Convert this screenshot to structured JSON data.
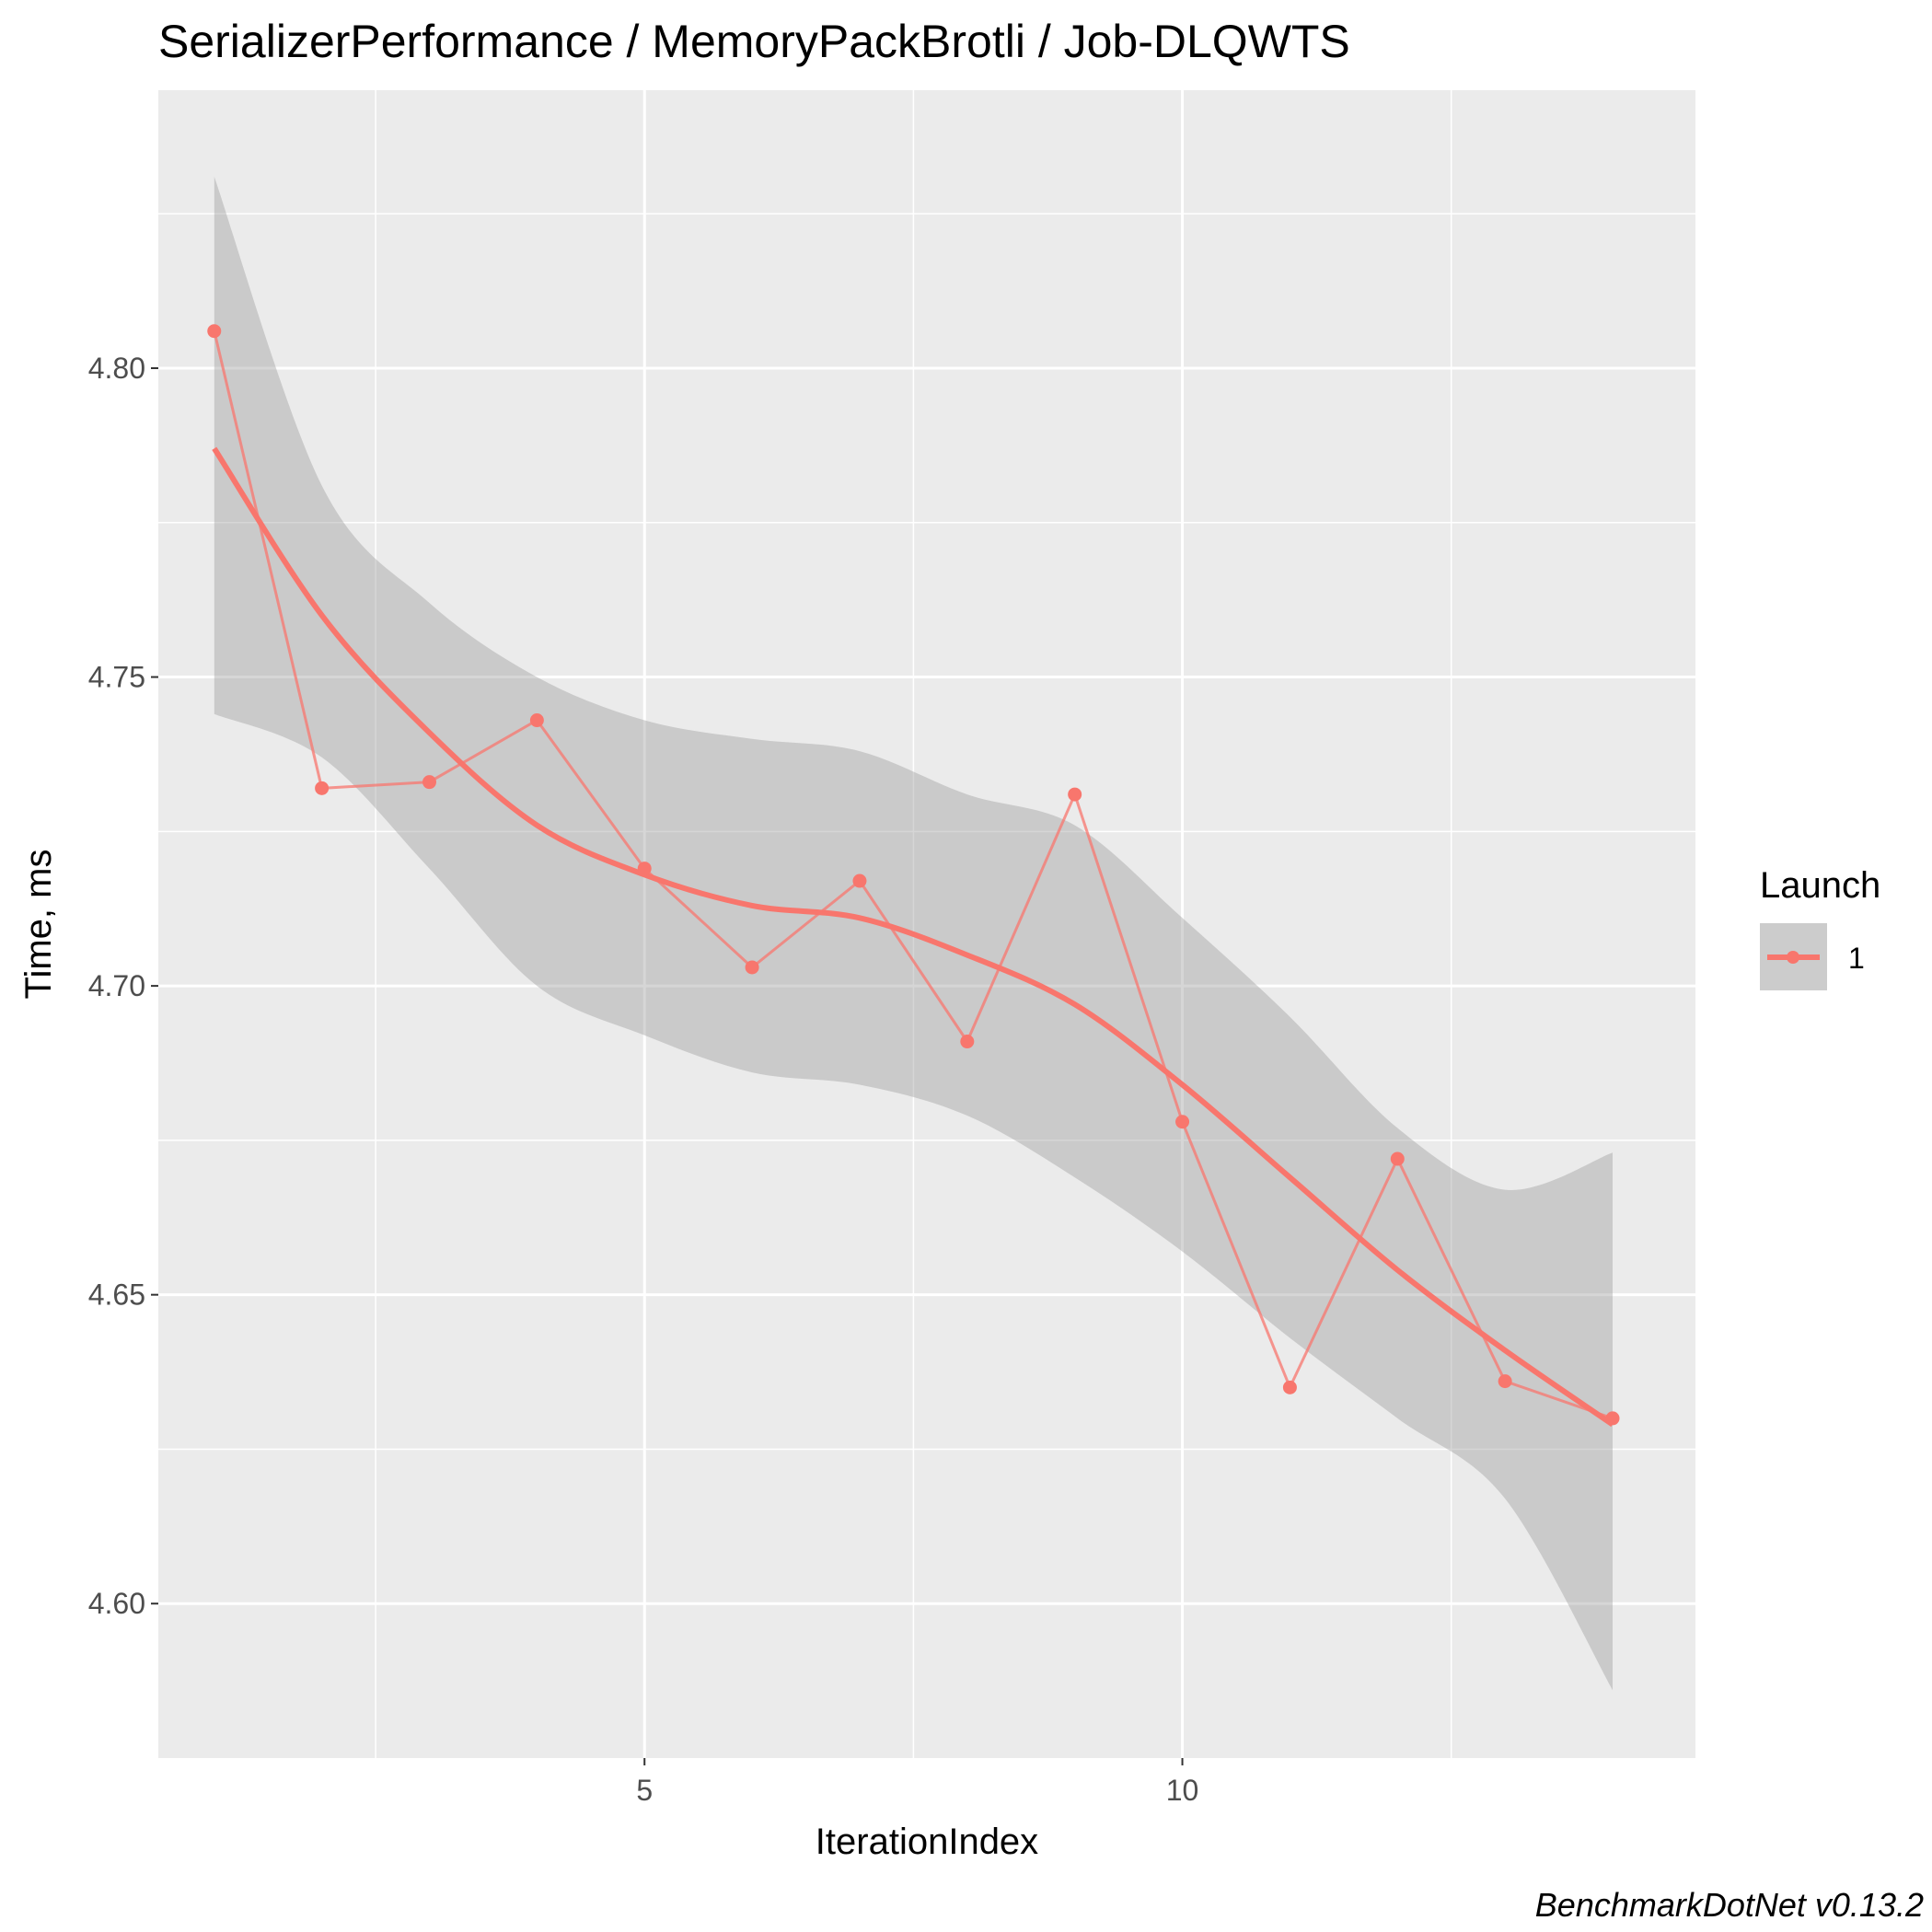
{
  "chart_data": {
    "type": "line",
    "title": "SerializerPerformance / MemoryPackBrotli / Job-DLQWTS",
    "xlabel": "IterationIndex",
    "ylabel": "Time, ms",
    "x_ticks": [
      5,
      10
    ],
    "y_ticks": [
      "4.60",
      "4.65",
      "4.70",
      "4.75",
      "4.80"
    ],
    "xlim": [
      0.48,
      14.77
    ],
    "ylim": [
      4.575,
      4.845
    ],
    "grid": true,
    "legend": {
      "title": "Launch",
      "position": "right"
    },
    "series": [
      {
        "name": "1",
        "color": "#f8766d",
        "x": [
          1,
          2,
          3,
          4,
          5,
          6,
          7,
          8,
          9,
          10,
          11,
          12,
          13,
          14
        ],
        "y": [
          4.806,
          4.732,
          4.733,
          4.743,
          4.719,
          4.703,
          4.717,
          4.691,
          4.731,
          4.678,
          4.635,
          4.672,
          4.636,
          4.63
        ]
      }
    ],
    "smooth": {
      "x": [
        1,
        2,
        3,
        4,
        5,
        6,
        7,
        8,
        9,
        10,
        11,
        12,
        13,
        14
      ],
      "y": [
        4.787,
        4.76,
        4.741,
        4.726,
        4.718,
        4.713,
        4.711,
        4.705,
        4.697,
        4.684,
        4.669,
        4.654,
        4.641,
        4.629
      ],
      "upper": [
        4.831,
        4.781,
        4.762,
        4.75,
        4.743,
        4.74,
        4.738,
        4.731,
        4.726,
        4.711,
        4.695,
        4.677,
        4.667,
        4.673
      ],
      "lower": [
        4.744,
        4.737,
        4.719,
        4.7,
        4.692,
        4.686,
        4.684,
        4.679,
        4.669,
        4.657,
        4.643,
        4.63,
        4.617,
        4.586
      ]
    }
  },
  "caption": "BenchmarkDotNet v0.13.2"
}
